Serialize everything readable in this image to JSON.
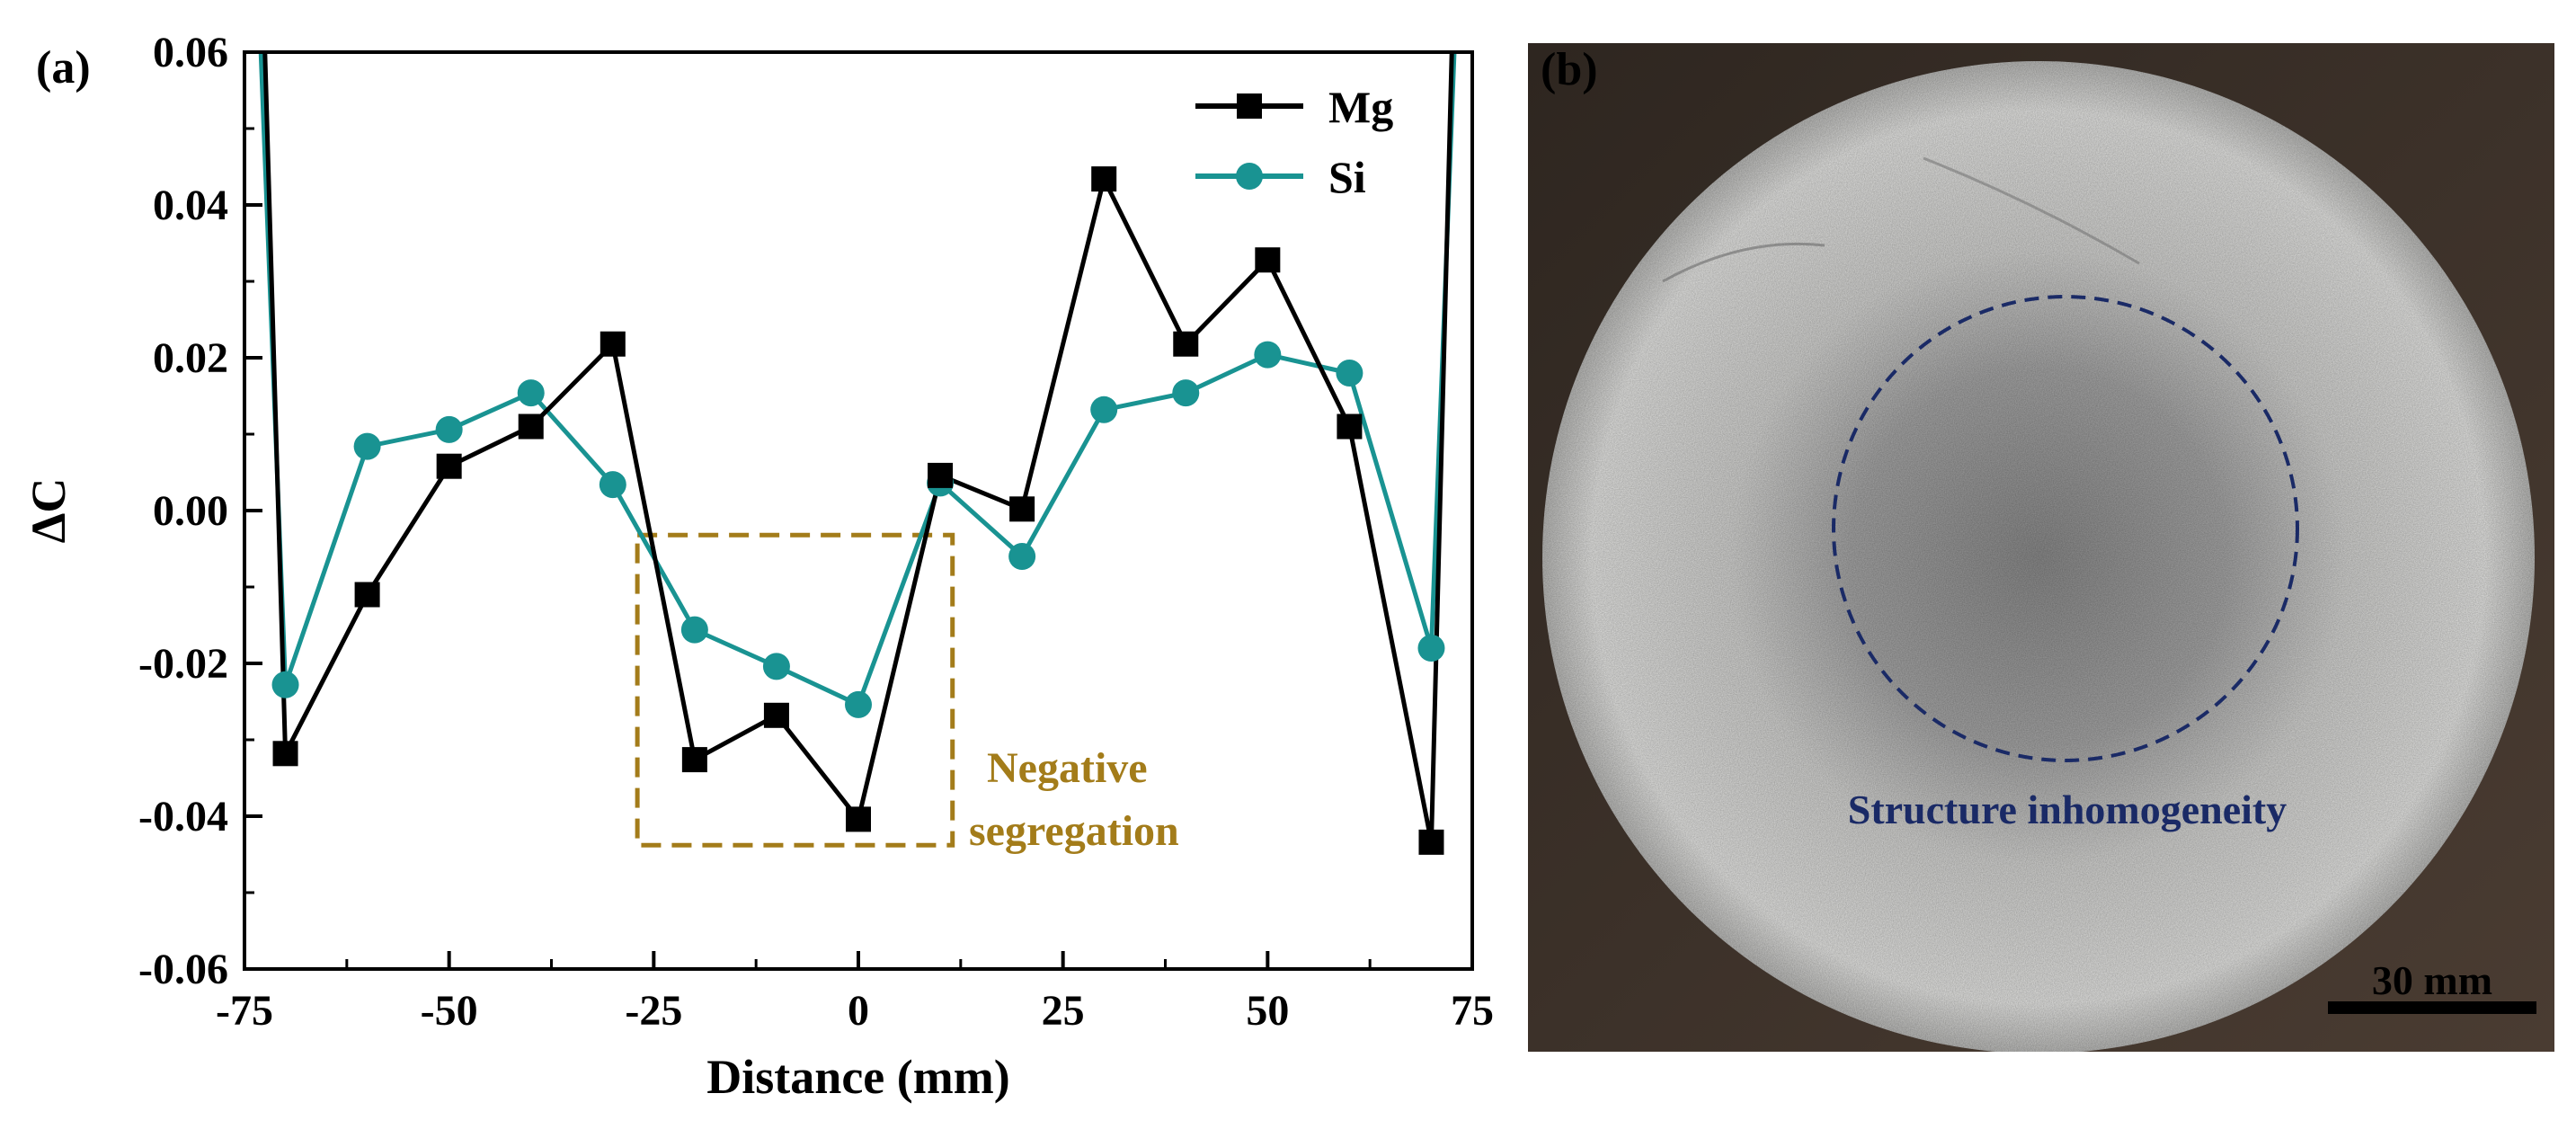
{
  "chart_data": {
    "type": "line",
    "panel_label": "(a)",
    "xlabel": "Distance (mm)",
    "ylabel": "ΔC",
    "xlim": [
      -75,
      75
    ],
    "ylim": [
      -0.06,
      0.06
    ],
    "x_ticks": [
      "-75",
      "-50",
      "-25",
      "0",
      "25",
      "50",
      "75"
    ],
    "x_tick_values": [
      -75,
      -50,
      -25,
      0,
      25,
      50,
      75
    ],
    "y_ticks": [
      "0.06",
      "0.04",
      "0.02",
      "0.00",
      "-0.02",
      "-0.04",
      "-0.06"
    ],
    "y_tick_values": [
      0.06,
      0.04,
      0.02,
      0.0,
      -0.02,
      -0.04,
      -0.06
    ],
    "legend_position": "top-right",
    "series": [
      {
        "name": "Mg",
        "color": "#000000",
        "marker": "square",
        "x": [
          -72.5,
          -70,
          -60,
          -50,
          -40,
          -30,
          -20,
          -10,
          0,
          10,
          20,
          30,
          40,
          50,
          60,
          70,
          72.5
        ],
        "values": [
          0.06,
          -0.0318,
          -0.011,
          0.0058,
          0.011,
          0.0218,
          -0.0326,
          -0.0268,
          -0.0404,
          0.0046,
          0.0002,
          0.0434,
          0.0218,
          0.0328,
          0.011,
          -0.0434,
          0.06
        ],
        "marker_indices": [
          1,
          2,
          3,
          4,
          5,
          6,
          7,
          8,
          9,
          10,
          11,
          12,
          13,
          14,
          15
        ]
      },
      {
        "name": "Si",
        "color": "#199392",
        "marker": "circle",
        "x": [
          -73,
          -70,
          -60,
          -50,
          -40,
          -30,
          -20,
          -10,
          0,
          10,
          20,
          30,
          40,
          50,
          60,
          70,
          72.8
        ],
        "values": [
          0.06,
          -0.0228,
          0.0084,
          0.0106,
          0.0154,
          0.0034,
          -0.0156,
          -0.0204,
          -0.0254,
          0.0036,
          -0.006,
          0.0132,
          0.0154,
          0.0204,
          0.018,
          -0.018,
          0.06
        ],
        "marker_indices": [
          1,
          2,
          3,
          4,
          5,
          6,
          7,
          8,
          9,
          10,
          11,
          12,
          13,
          14,
          15
        ]
      }
    ],
    "annotation": {
      "line1": "Negative",
      "line2": "segregation",
      "color": "#a37c1a",
      "box_x": [
        -27,
        11.5
      ],
      "box_y": [
        -0.0438,
        -0.0032
      ]
    }
  },
  "photo": {
    "panel_label": "(b)",
    "inhomogeneity_label": "Structure inhomogeneity",
    "inhomogeneity_color": "#1a2a66",
    "scale_bar_label": "30 mm"
  }
}
